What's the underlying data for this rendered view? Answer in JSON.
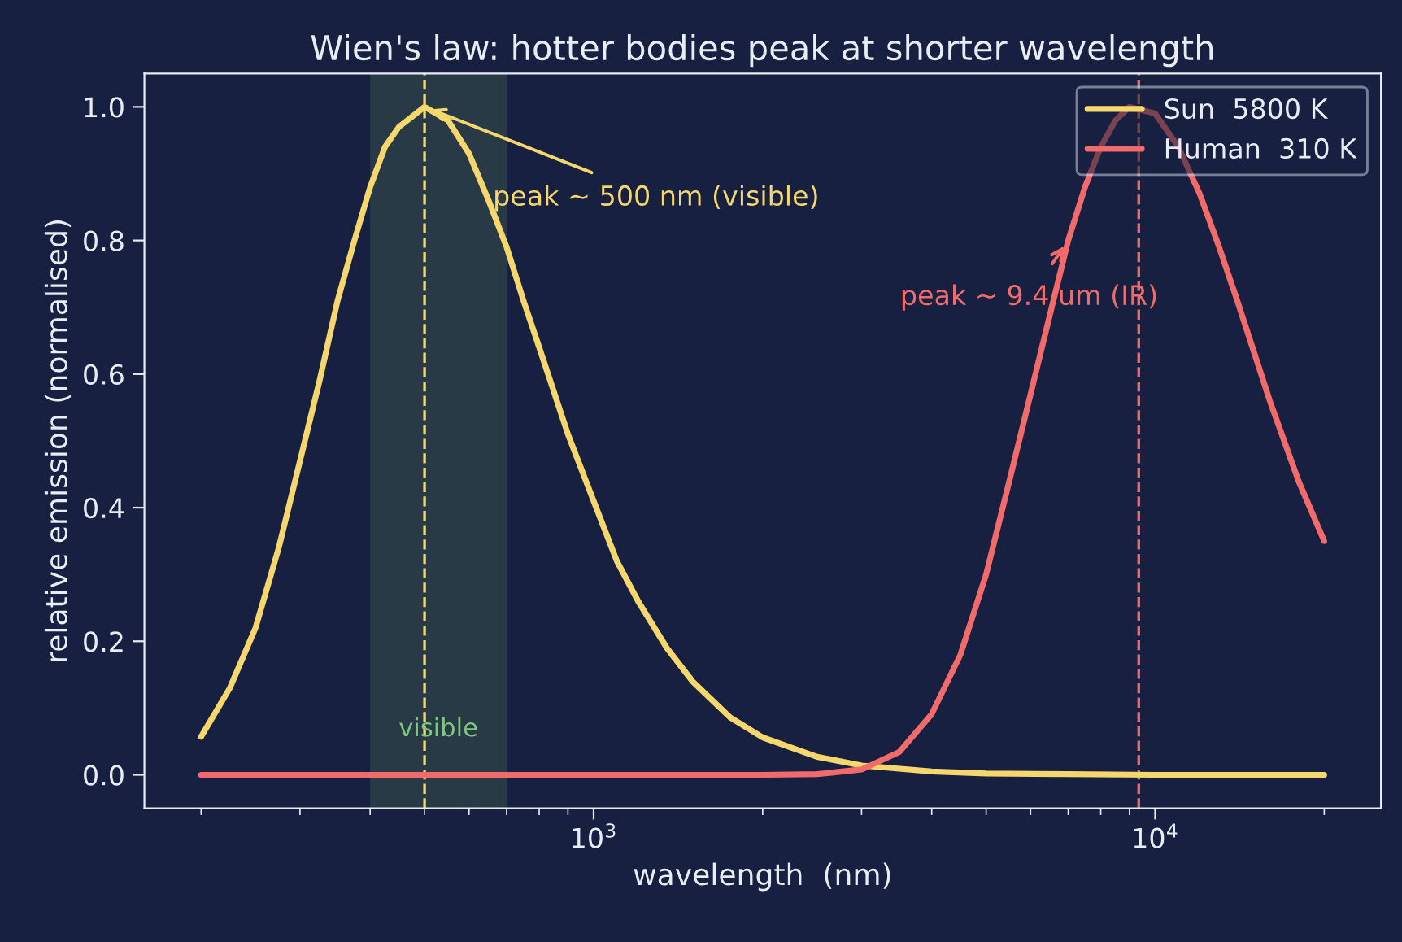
{
  "chart_data": {
    "type": "line",
    "title": "Wien's law: hotter bodies peak at shorter wavelength",
    "xlabel": "wavelength  (nm)",
    "ylabel": "relative emission (normalised)",
    "series": [
      {
        "name": "Sun  5800 K",
        "color": "#f5d76e",
        "x": [
          200,
          225,
          250,
          275,
          300,
          325,
          350,
          375,
          400,
          425,
          450,
          500,
          550,
          600,
          650,
          700,
          750,
          800,
          900,
          1000,
          1100,
          1200,
          1350,
          1500,
          1750,
          2000,
          2500,
          3000,
          4000,
          5000,
          7000,
          10000,
          15000,
          20000
        ],
        "values": [
          0.057,
          0.13,
          0.22,
          0.34,
          0.47,
          0.59,
          0.71,
          0.8,
          0.88,
          0.94,
          0.97,
          1.0,
          0.98,
          0.93,
          0.86,
          0.79,
          0.71,
          0.64,
          0.51,
          0.41,
          0.32,
          0.26,
          0.19,
          0.14,
          0.086,
          0.056,
          0.027,
          0.014,
          0.005,
          0.002,
          0.001,
          0.0,
          0.0,
          0.0
        ]
      },
      {
        "name": "Human  310 K",
        "color": "#f26b6b",
        "x": [
          200,
          1000,
          2000,
          2500,
          3000,
          3500,
          4000,
          4500,
          5000,
          5500,
          6000,
          6500,
          7000,
          7500,
          8000,
          8500,
          9000,
          10000,
          11000,
          12000,
          13000,
          14000,
          16000,
          18000,
          20000
        ],
        "values": [
          0.0,
          0.0,
          0.0,
          0.001,
          0.008,
          0.034,
          0.091,
          0.18,
          0.3,
          0.44,
          0.57,
          0.69,
          0.8,
          0.88,
          0.94,
          0.98,
          1.0,
          0.99,
          0.94,
          0.87,
          0.79,
          0.71,
          0.56,
          0.44,
          0.35
        ]
      }
    ],
    "log": "x",
    "xlim": [
      158.5,
      25240
    ],
    "xticks": [
      {
        "value": 1000,
        "label": "10$^{3}$"
      },
      {
        "value": 10000,
        "label": "10$^{4}$"
      }
    ],
    "ylim": [
      -0.05,
      1.05
    ],
    "yticks": [
      {
        "value": 0,
        "label": "0.0"
      },
      {
        "value": 0.2,
        "label": "0.2"
      },
      {
        "value": 0.4,
        "label": "0.4"
      },
      {
        "value": 0.6,
        "label": "0.6"
      },
      {
        "value": 0.8,
        "label": "0.8"
      },
      {
        "value": 1,
        "label": "1.0"
      }
    ],
    "ref_lines": [
      {
        "axis": "x",
        "value": 500,
        "color": "#f5d76e",
        "line_style": "dashed"
      },
      {
        "axis": "x",
        "value": 9348,
        "color": "#f26b6b",
        "line_style": "dashed"
      }
    ],
    "bands": [
      {
        "axis": "x",
        "from": 400,
        "to": 700,
        "label": "visible",
        "color": "#283a45"
      }
    ],
    "annotations": [
      {
        "text": "peak ~ 500 nm (visible)",
        "x": 500,
        "y": 1.0
      },
      {
        "text": "peak ~ 9.4 um (IR)",
        "x": 7000,
        "y": 0.8
      }
    ],
    "legend": "top right",
    "grid": false,
    "marker": "none",
    "line_style": "solid"
  }
}
